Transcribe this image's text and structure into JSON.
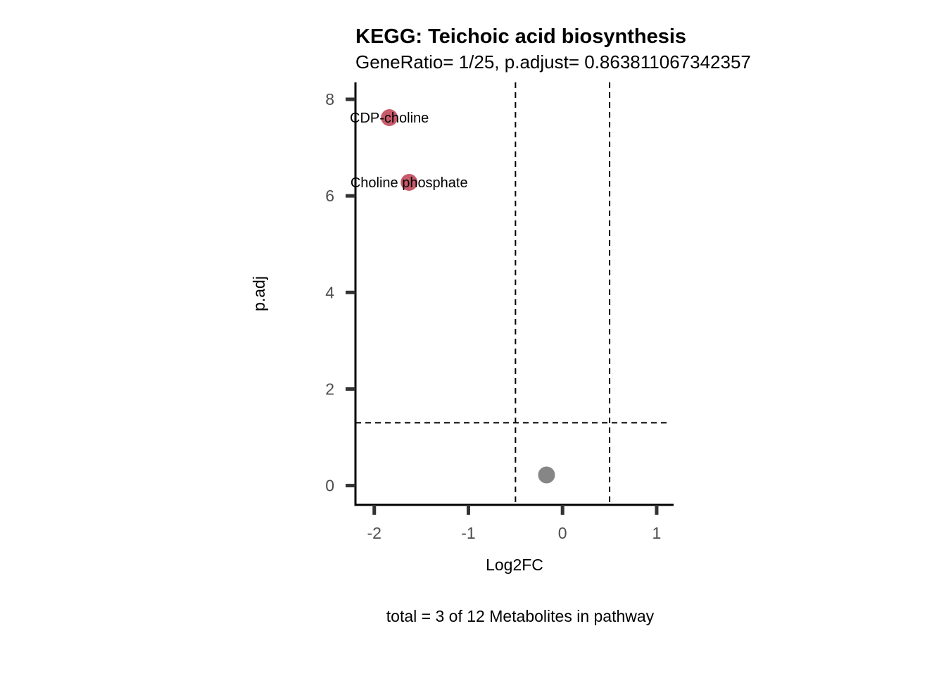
{
  "chart_data": {
    "type": "scatter",
    "title": "KEGG: Teichoic acid biosynthesis",
    "subtitle": "GeneRatio= 1/25, p.adjust= 0.863811067342357",
    "xlabel": "Log2FC",
    "ylabel": "p.adj",
    "caption": "total = 3 of 12 Metabolites in pathway",
    "xlim": [
      -2.2,
      1.18
    ],
    "ylim": [
      -0.4,
      8.35
    ],
    "x_ticks": [
      {
        "value": -2,
        "label": "-2"
      },
      {
        "value": -1,
        "label": "-1"
      },
      {
        "value": 0,
        "label": "0"
      },
      {
        "value": 1,
        "label": "1"
      }
    ],
    "y_ticks": [
      {
        "value": 0,
        "label": "0"
      },
      {
        "value": 2,
        "label": "2"
      },
      {
        "value": 4,
        "label": "4"
      },
      {
        "value": 6,
        "label": "6"
      },
      {
        "value": 8,
        "label": "8"
      }
    ],
    "reference_lines": {
      "vertical_x": [
        -0.5,
        0.5
      ],
      "horizontal_y": [
        1.301
      ]
    },
    "grid": false,
    "legend": "none",
    "points": [
      {
        "x": -1.84,
        "y": 7.62,
        "label": "CDP-choline",
        "color": "#c75b6b"
      },
      {
        "x": -1.63,
        "y": 6.28,
        "label": "Choline phosphate",
        "color": "#c75b6b"
      },
      {
        "x": -0.17,
        "y": 0.22,
        "label": "",
        "color": "#868686"
      }
    ],
    "colors": {
      "significant": "#c75b6b",
      "not_significant": "#868686",
      "axis": "#000000",
      "tick": "#333333",
      "tick_label": "#4d4d4d"
    }
  }
}
